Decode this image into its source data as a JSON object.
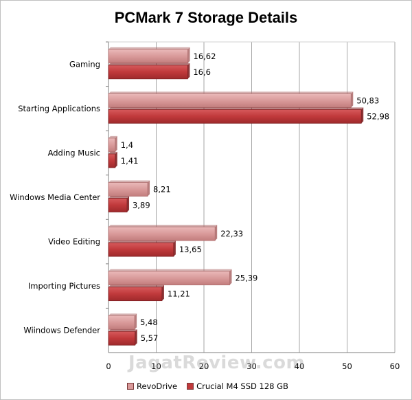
{
  "chart_data": {
    "type": "bar",
    "orientation": "horizontal",
    "title": "PCMark 7 Storage Details",
    "categories": [
      "Gaming",
      "Starting Applications",
      "Adding Music",
      "Windows Media Center",
      "Video Editing",
      "Importing Pictures",
      "Wiindows Defender"
    ],
    "series": [
      {
        "name": "RevoDrive",
        "values": [
          16.62,
          50.83,
          1.4,
          8.21,
          22.33,
          25.39,
          5.48
        ],
        "labels": [
          "16,62",
          "50,83",
          "1,4",
          "8,21",
          "22,33",
          "25,39",
          "5,48"
        ],
        "color": "#d99a9a"
      },
      {
        "name": "Crucial M4 SSD 128 GB",
        "values": [
          16.6,
          52.98,
          1.41,
          3.89,
          13.65,
          11.21,
          5.57
        ],
        "labels": [
          "16,6",
          "52,98",
          "1,41",
          "3,89",
          "13,65",
          "11,21",
          "5,57"
        ],
        "color": "#c0393b"
      }
    ],
    "xlim": [
      0,
      60
    ],
    "xticks": [
      0,
      10,
      20,
      30,
      40,
      50,
      60
    ],
    "grid": true,
    "legend_position": "bottom"
  },
  "watermark": "JagatReview.com"
}
